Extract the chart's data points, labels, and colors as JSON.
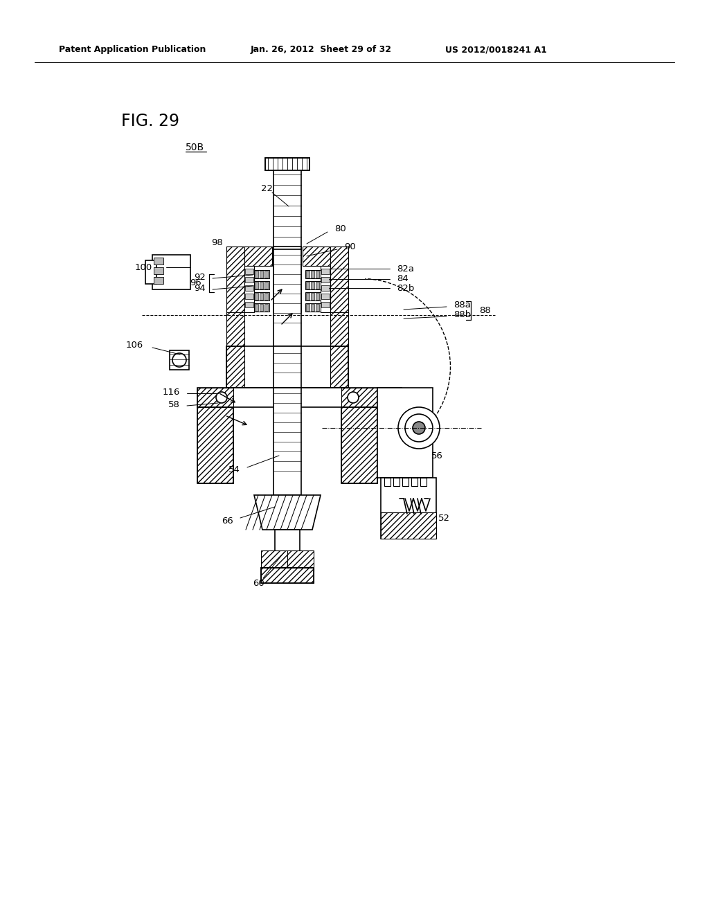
{
  "bg_color": "#ffffff",
  "line_color": "#000000",
  "header_left": "Patent Application Publication",
  "header_mid": "Jan. 26, 2012  Sheet 29 of 32",
  "header_right": "US 2012/0018241 A1",
  "fig_title": "FIG. 29",
  "label_50B": "50B",
  "label_22": "22",
  "label_80": "80",
  "label_90": "90",
  "label_82a": "82a",
  "label_84": "84",
  "label_82b": "82b",
  "label_88a": "88a",
  "label_88b": "88b",
  "label_88": "88",
  "label_98": "98",
  "label_100": "100",
  "label_92": "92",
  "label_94": "94",
  "label_96": "96",
  "label_106": "106",
  "label_116": "116",
  "label_58": "58",
  "label_54": "54",
  "label_66": "66",
  "label_60": "60",
  "label_56": "56",
  "label_52": "52"
}
